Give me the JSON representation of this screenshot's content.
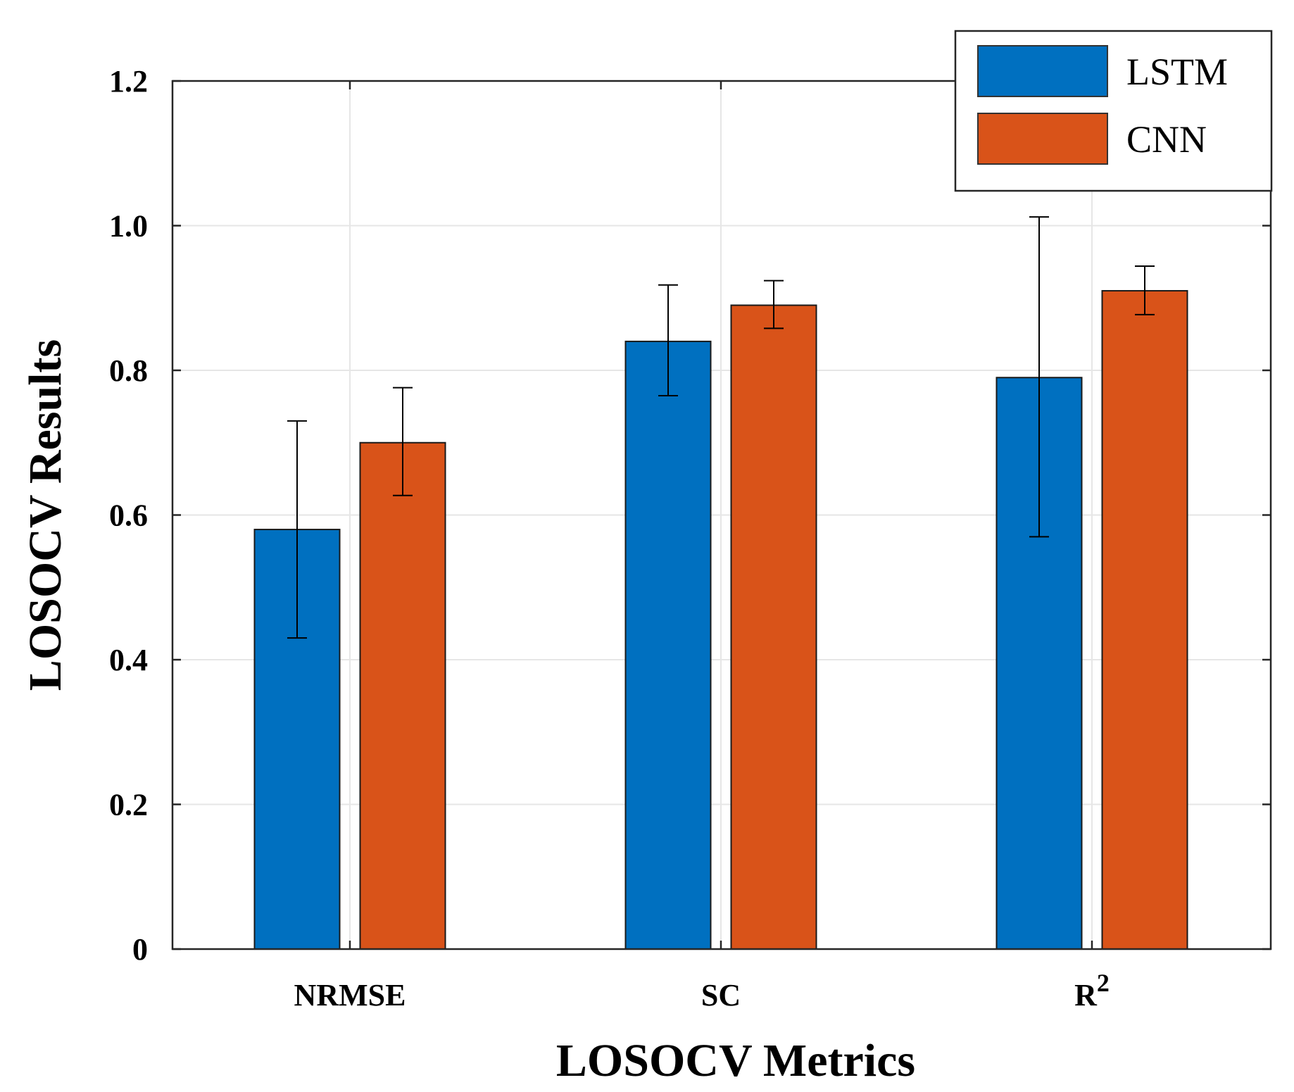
{
  "chart_data": {
    "type": "bar",
    "title": "",
    "xlabel": "LOSOCV Metrics",
    "ylabel": "LOSOCV Results",
    "ylim": [
      0,
      1.2
    ],
    "yticks": [
      0,
      0.2,
      0.4,
      0.6,
      0.8,
      1.0,
      1.2
    ],
    "ytick_labels": [
      "0",
      "0.2",
      "0.4",
      "0.6",
      "0.8",
      "1.0",
      "1.2"
    ],
    "grid": true,
    "legend_position": "top-right",
    "categories": [
      {
        "base": "NRMSE",
        "sup": ""
      },
      {
        "base": "SC",
        "sup": ""
      },
      {
        "base": "R",
        "sup": "2"
      }
    ],
    "series": [
      {
        "name": "LSTM",
        "color": "#0070C0",
        "values": [
          0.58,
          0.84,
          0.79
        ],
        "err_low": [
          0.43,
          0.765,
          0.57
        ],
        "err_high": [
          0.73,
          0.918,
          1.012
        ]
      },
      {
        "name": "CNN",
        "color": "#D95319",
        "values": [
          0.7,
          0.89,
          0.91
        ],
        "err_low": [
          0.627,
          0.858,
          0.877
        ],
        "err_high": [
          0.776,
          0.924,
          0.944
        ]
      }
    ]
  }
}
